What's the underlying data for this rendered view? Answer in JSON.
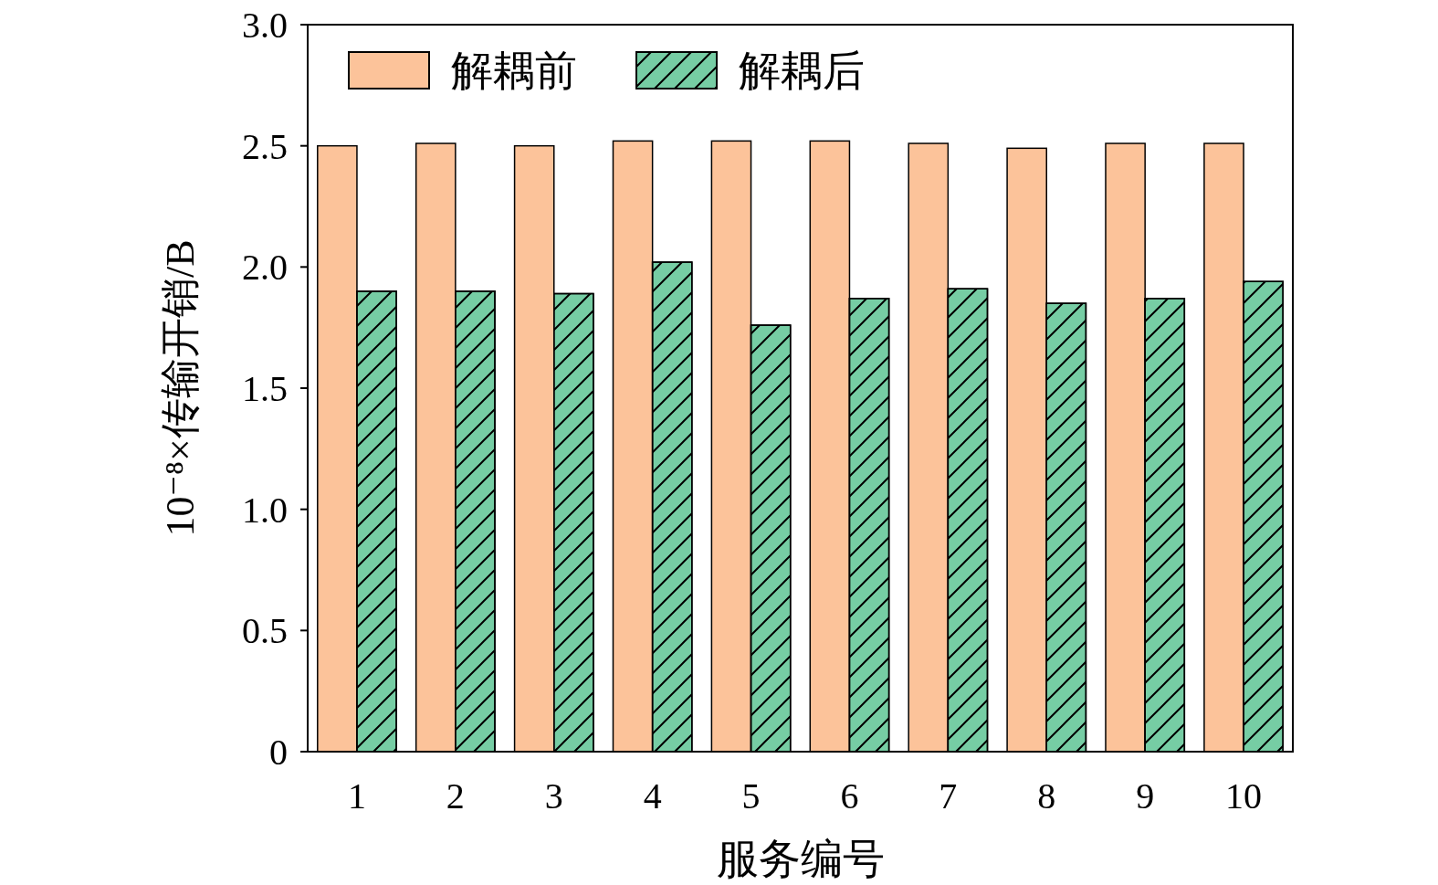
{
  "chart_data": {
    "type": "bar",
    "xlabel": "服务编号",
    "ylabel": "10⁻⁸×传输开销/B",
    "categories": [
      "1",
      "2",
      "3",
      "4",
      "5",
      "6",
      "7",
      "8",
      "9",
      "10"
    ],
    "series": [
      {
        "name": "解耦前",
        "color": "#fcc39a",
        "values": [
          2.5,
          2.51,
          2.5,
          2.52,
          2.52,
          2.52,
          2.51,
          2.49,
          2.51,
          2.51
        ]
      },
      {
        "name": "解耦后",
        "color": "#76cda4",
        "values": [
          1.9,
          1.9,
          1.89,
          2.02,
          1.76,
          1.87,
          1.91,
          1.85,
          1.87,
          1.94
        ]
      }
    ],
    "ylim": [
      0,
      3
    ],
    "yticks": [
      0,
      {
        "value": 0.5,
        "label": "0.5"
      },
      {
        "value": 1,
        "label": "1.0"
      },
      {
        "value": 1.5,
        "label": "1.5"
      },
      {
        "value": 2,
        "label": "2.0"
      },
      {
        "value": 2.5,
        "label": "2.5"
      },
      {
        "value": 3,
        "label": "3.0"
      }
    ],
    "grid": false,
    "legend": "top left"
  }
}
